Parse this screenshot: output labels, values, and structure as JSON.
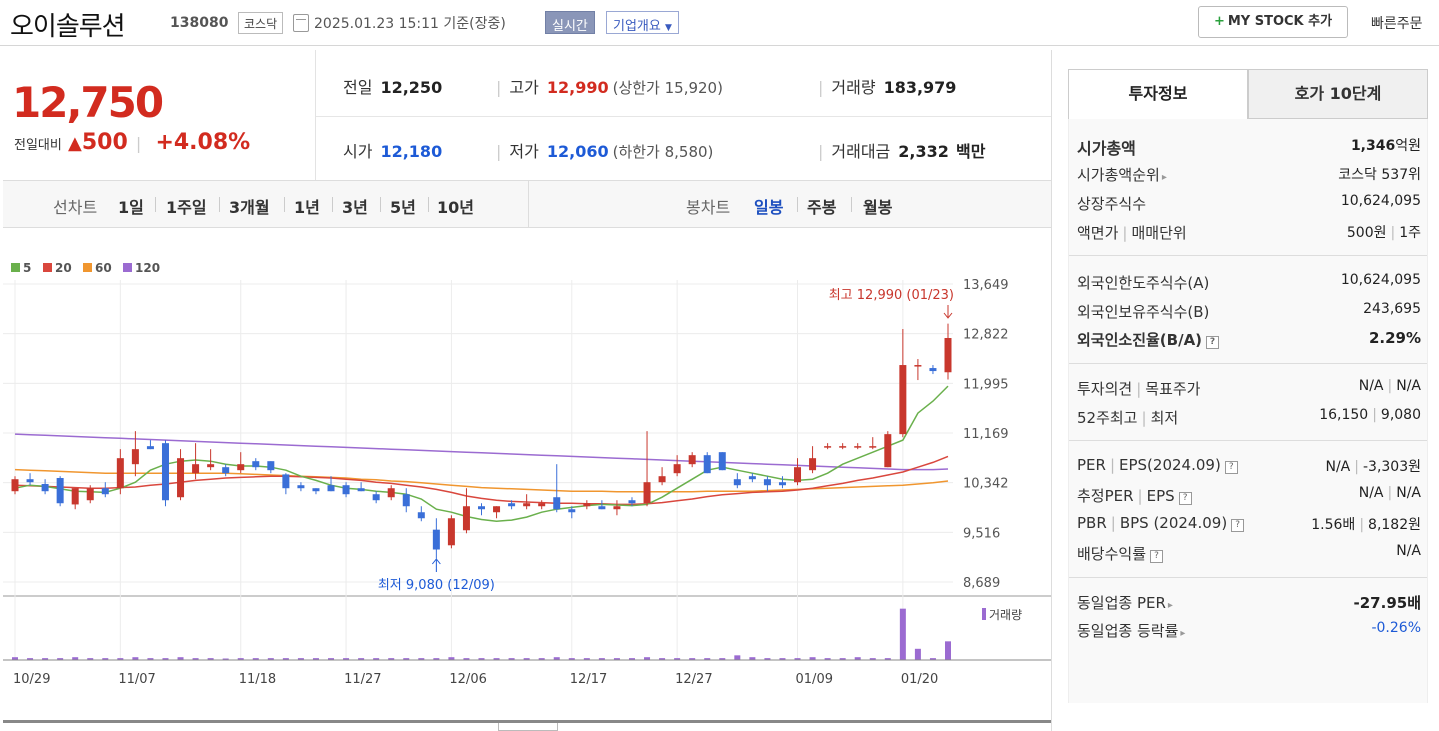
{
  "header": {
    "stock_name": "오이솔루션",
    "stock_code": "138080",
    "market": "코스닥",
    "datetime": "2025.01.23 15:11 기준(장중)",
    "realtime_label": "실시간",
    "overview_label": "기업개요",
    "mystock_label": "MY STOCK 추가",
    "quick_order_label": "빠른주문"
  },
  "price": {
    "current": "12,750",
    "change_label": "전일대비",
    "change_amount": "500",
    "change_pct": "+4.08%"
  },
  "stats": {
    "prev_label": "전일",
    "prev": "12,250",
    "high_label": "고가",
    "high": "12,990",
    "upper_limit": "(상한가 15,920)",
    "volume_label": "거래량",
    "volume": "183,979",
    "open_label": "시가",
    "open": "12,180",
    "low_label": "저가",
    "low": "12,060",
    "lower_limit": "(하한가 8,580)",
    "value_label": "거래대금",
    "value": "2,332",
    "value_unit": "백만"
  },
  "period_bar": {
    "line_chart_label": "선차트",
    "line_periods": [
      "1일",
      "1주일",
      "3개월",
      "1년",
      "3년",
      "5년",
      "10년"
    ],
    "candle_chart_label": "봉차트",
    "candle_periods": [
      "일봉",
      "주봉",
      "월봉"
    ],
    "active_candle": "일봉"
  },
  "right_panel": {
    "tab_active": "투자정보",
    "tab_other": "호가 10단계",
    "market_cap_label": "시가총액",
    "market_cap_value": "1,346",
    "market_cap_unit": "억원",
    "market_cap_rank_label": "시가총액순위",
    "market_cap_rank_value": "코스닥 537위",
    "listed_shares_label": "상장주식수",
    "listed_shares_value": "10,624,095",
    "par_label": "액면가",
    "trade_unit_label": "매매단위",
    "par_value": "500원",
    "trade_unit_value": "1주",
    "foreign_limit_label": "외국인한도주식수(A)",
    "foreign_limit_value": "10,624,095",
    "foreign_hold_label": "외국인보유주식수(B)",
    "foreign_hold_value": "243,695",
    "foreign_ratio_label": "외국인소진율(B/A)",
    "foreign_ratio_value": "2.29%",
    "opinion_label": "투자의견",
    "target_label": "목표주가",
    "opinion_value": "N/A",
    "target_value": "N/A",
    "high52_label": "52주최고",
    "low52_label": "최저",
    "high52_value": "16,150",
    "low52_value": "9,080",
    "per_label": "PER",
    "eps_label": "EPS(2024.09)",
    "per_value": "N/A",
    "eps_value": "-3,303원",
    "est_per_label": "추정PER",
    "est_eps_label": "EPS",
    "est_per_value": "N/A",
    "est_eps_value": "N/A",
    "pbr_label": "PBR",
    "bps_label": "BPS (2024.09)",
    "pbr_value": "1.56배",
    "bps_value": "8,182원",
    "div_label": "배당수익률",
    "div_value": "N/A",
    "sector_per_label": "동일업종 PER",
    "sector_per_value": "-27.95배",
    "sector_change_label": "동일업종 등락률",
    "sector_change_value": "-0.26%"
  },
  "chart_data": {
    "type": "candlestick",
    "legend": [
      {
        "name": "5",
        "color": "#6ab04c"
      },
      {
        "name": "20",
        "color": "#d9473d"
      },
      {
        "name": "60",
        "color": "#f0962f"
      },
      {
        "name": "120",
        "color": "#9b6bd1"
      }
    ],
    "y_ticks": [
      "13,649",
      "12,822",
      "11,995",
      "11,169",
      "10,342",
      "9,516",
      "8,689"
    ],
    "ylim": [
      8689,
      13649
    ],
    "x_ticks": [
      "10/29",
      "11/07",
      "11/18",
      "11/27",
      "12/06",
      "12/17",
      "12/27",
      "01/09",
      "01/20"
    ],
    "annotation_high": "최고 12,990 (01/23)",
    "annotation_low": "최저 9,080 (12/09)",
    "volume_label": "거래량",
    "up_color": "#c8372d",
    "down_color": "#3a6fd8",
    "candles": [
      {
        "o": 10200,
        "h": 10450,
        "l": 10150,
        "c": 10400
      },
      {
        "o": 10400,
        "h": 10500,
        "l": 10300,
        "c": 10350
      },
      {
        "o": 10320,
        "h": 10400,
        "l": 10150,
        "c": 10200
      },
      {
        "o": 10420,
        "h": 10450,
        "l": 9950,
        "c": 10000
      },
      {
        "o": 9980,
        "h": 10250,
        "l": 9900,
        "c": 10250
      },
      {
        "o": 10050,
        "h": 10300,
        "l": 10000,
        "c": 10250
      },
      {
        "o": 10250,
        "h": 10350,
        "l": 10100,
        "c": 10150
      },
      {
        "o": 10250,
        "h": 10900,
        "l": 10150,
        "c": 10750
      },
      {
        "o": 10650,
        "h": 11200,
        "l": 10450,
        "c": 10900
      },
      {
        "o": 10950,
        "h": 11050,
        "l": 10900,
        "c": 10900
      },
      {
        "o": 11000,
        "h": 11050,
        "l": 9950,
        "c": 10050
      },
      {
        "o": 10100,
        "h": 10900,
        "l": 10050,
        "c": 10750
      },
      {
        "o": 10500,
        "h": 11000,
        "l": 10400,
        "c": 10650
      },
      {
        "o": 10600,
        "h": 10900,
        "l": 10550,
        "c": 10650
      },
      {
        "o": 10600,
        "h": 10650,
        "l": 10450,
        "c": 10500
      },
      {
        "o": 10550,
        "h": 10850,
        "l": 10500,
        "c": 10650
      },
      {
        "o": 10700,
        "h": 10750,
        "l": 10550,
        "c": 10600
      },
      {
        "o": 10700,
        "h": 10700,
        "l": 10500,
        "c": 10550
      },
      {
        "o": 10480,
        "h": 10500,
        "l": 10150,
        "c": 10250
      },
      {
        "o": 10300,
        "h": 10350,
        "l": 10200,
        "c": 10250
      },
      {
        "o": 10250,
        "h": 10250,
        "l": 10150,
        "c": 10200
      },
      {
        "o": 10300,
        "h": 10450,
        "l": 10200,
        "c": 10200
      },
      {
        "o": 10300,
        "h": 10350,
        "l": 10100,
        "c": 10150
      },
      {
        "o": 10250,
        "h": 10350,
        "l": 10200,
        "c": 10200
      },
      {
        "o": 10150,
        "h": 10200,
        "l": 10000,
        "c": 10050
      },
      {
        "o": 10100,
        "h": 10300,
        "l": 10050,
        "c": 10250
      },
      {
        "o": 10150,
        "h": 10250,
        "l": 9850,
        "c": 9950
      },
      {
        "o": 9850,
        "h": 9950,
        "l": 9700,
        "c": 9750
      },
      {
        "o": 9560,
        "h": 9750,
        "l": 9080,
        "c": 9230
      },
      {
        "o": 9300,
        "h": 9800,
        "l": 9250,
        "c": 9750
      },
      {
        "o": 9550,
        "h": 10250,
        "l": 9500,
        "c": 9950
      },
      {
        "o": 9950,
        "h": 10000,
        "l": 9800,
        "c": 9900
      },
      {
        "o": 9850,
        "h": 9950,
        "l": 9750,
        "c": 9950
      },
      {
        "o": 10000,
        "h": 10050,
        "l": 9900,
        "c": 9950
      },
      {
        "o": 9950,
        "h": 10150,
        "l": 9900,
        "c": 10000
      },
      {
        "o": 9950,
        "h": 10050,
        "l": 9900,
        "c": 10000
      },
      {
        "o": 10100,
        "h": 10650,
        "l": 9850,
        "c": 9900
      },
      {
        "o": 9900,
        "h": 9950,
        "l": 9750,
        "c": 9850
      },
      {
        "o": 9950,
        "h": 10050,
        "l": 9900,
        "c": 10000
      },
      {
        "o": 9950,
        "h": 10050,
        "l": 9900,
        "c": 9900
      },
      {
        "o": 9900,
        "h": 10050,
        "l": 9800,
        "c": 9950
      },
      {
        "o": 10050,
        "h": 10100,
        "l": 9950,
        "c": 10000
      },
      {
        "o": 10000,
        "h": 11200,
        "l": 9950,
        "c": 10350
      },
      {
        "o": 10350,
        "h": 10600,
        "l": 10300,
        "c": 10450
      },
      {
        "o": 10500,
        "h": 10800,
        "l": 10450,
        "c": 10650
      },
      {
        "o": 10650,
        "h": 10850,
        "l": 10600,
        "c": 10800
      },
      {
        "o": 10800,
        "h": 10850,
        "l": 10500,
        "c": 10500
      },
      {
        "o": 10850,
        "h": 10850,
        "l": 10550,
        "c": 10550
      },
      {
        "o": 10400,
        "h": 10500,
        "l": 10250,
        "c": 10300
      },
      {
        "o": 10450,
        "h": 10500,
        "l": 10350,
        "c": 10400
      },
      {
        "o": 10400,
        "h": 10450,
        "l": 10200,
        "c": 10300
      },
      {
        "o": 10350,
        "h": 10450,
        "l": 10250,
        "c": 10300
      },
      {
        "o": 10350,
        "h": 10750,
        "l": 10300,
        "c": 10600
      },
      {
        "o": 10550,
        "h": 10950,
        "l": 10500,
        "c": 10750
      },
      {
        "o": 10950,
        "h": 11000,
        "l": 10900,
        "c": 10950
      },
      {
        "o": 10950,
        "h": 11000,
        "l": 10900,
        "c": 10950
      },
      {
        "o": 10950,
        "h": 11000,
        "l": 10900,
        "c": 10950
      },
      {
        "o": 10950,
        "h": 11100,
        "l": 10900,
        "c": 10950
      },
      {
        "o": 10600,
        "h": 11200,
        "l": 10600,
        "c": 11150
      },
      {
        "o": 11150,
        "h": 12900,
        "l": 11100,
        "c": 12300
      },
      {
        "o": 12300,
        "h": 12400,
        "l": 12050,
        "c": 12300
      },
      {
        "o": 12250,
        "h": 12300,
        "l": 12150,
        "c": 12200
      },
      {
        "o": 12180,
        "h": 12990,
        "l": 12060,
        "c": 12750
      }
    ],
    "volumes": [
      3,
      2,
      2,
      2,
      3,
      2,
      2,
      2,
      3,
      2,
      2,
      3,
      2,
      2,
      1,
      2,
      2,
      2,
      2,
      2,
      2,
      2,
      2,
      2,
      2,
      2,
      2,
      2,
      2,
      3,
      2,
      2,
      2,
      2,
      2,
      2,
      3,
      2,
      2,
      2,
      2,
      2,
      3,
      2,
      2,
      2,
      2,
      2,
      5,
      3,
      2,
      2,
      2,
      3,
      2,
      2,
      3,
      2,
      2,
      55,
      12,
      2,
      20
    ],
    "ma5": [
      10250,
      10300,
      10280,
      10240,
      10200,
      10190,
      10180,
      10250,
      10350,
      10550,
      10650,
      10700,
      10720,
      10700,
      10650,
      10620,
      10620,
      10600,
      10550,
      10450,
      10380,
      10300,
      10250,
      10230,
      10200,
      10180,
      10150,
      10070,
      9900,
      9850,
      9780,
      9730,
      9700,
      9720,
      9770,
      9850,
      9900,
      9930,
      9960,
      9980,
      9970,
      9960,
      9980,
      10100,
      10250,
      10400,
      10550,
      10600,
      10550,
      10500,
      10450,
      10400,
      10380,
      10400,
      10500,
      10650,
      10750,
      10850,
      10950,
      11050,
      11500,
      11700,
      11950
    ],
    "ma20": [
      10300,
      10290,
      10280,
      10270,
      10260,
      10250,
      10250,
      10260,
      10270,
      10300,
      10320,
      10350,
      10380,
      10400,
      10420,
      10430,
      10440,
      10450,
      10450,
      10440,
      10430,
      10420,
      10400,
      10380,
      10350,
      10330,
      10300,
      10270,
      10230,
      10180,
      10120,
      10080,
      10050,
      10030,
      10020,
      10010,
      10000,
      10000,
      9990,
      9990,
      9980,
      9980,
      9990,
      10010,
      10040,
      10070,
      10110,
      10140,
      10160,
      10180,
      10190,
      10200,
      10220,
      10250,
      10290,
      10330,
      10380,
      10420,
      10470,
      10520,
      10600,
      10680,
      10780
    ],
    "ma60": [
      10560,
      10550,
      10540,
      10530,
      10520,
      10510,
      10500,
      10500,
      10500,
      10500,
      10500,
      10500,
      10500,
      10500,
      10500,
      10490,
      10480,
      10470,
      10460,
      10450,
      10440,
      10430,
      10420,
      10400,
      10390,
      10370,
      10360,
      10340,
      10320,
      10300,
      10280,
      10260,
      10250,
      10240,
      10230,
      10220,
      10210,
      10200,
      10200,
      10200,
      10190,
      10190,
      10190,
      10190,
      10190,
      10190,
      10200,
      10200,
      10200,
      10200,
      10210,
      10220,
      10230,
      10240,
      10250,
      10260,
      10270,
      10280,
      10290,
      10300,
      10320,
      10340,
      10370
    ],
    "ma120": [
      11150,
      11140,
      11130,
      11120,
      11110,
      11100,
      11090,
      11080,
      11070,
      11060,
      11050,
      11040,
      11030,
      11020,
      11010,
      11000,
      10990,
      10980,
      10970,
      10960,
      10950,
      10940,
      10930,
      10920,
      10910,
      10900,
      10890,
      10880,
      10870,
      10860,
      10850,
      10840,
      10830,
      10820,
      10810,
      10800,
      10790,
      10780,
      10770,
      10760,
      10750,
      10740,
      10730,
      10720,
      10710,
      10700,
      10690,
      10680,
      10670,
      10660,
      10650,
      10640,
      10630,
      10620,
      10610,
      10600,
      10590,
      10580,
      10570,
      10560,
      10560,
      10560,
      10570
    ]
  }
}
